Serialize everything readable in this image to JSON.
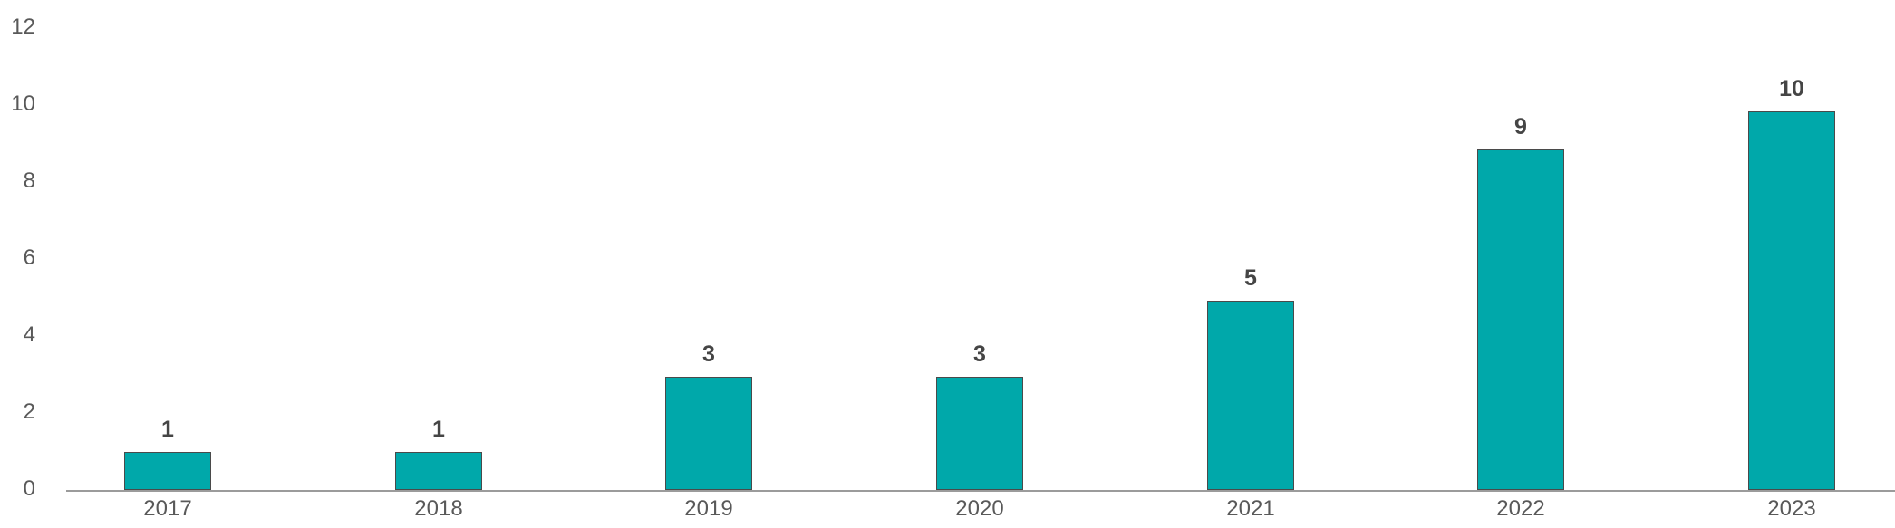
{
  "chart_data": {
    "type": "bar",
    "title": "",
    "xlabel": "",
    "ylabel": "",
    "categories": [
      "2017",
      "2018",
      "2019",
      "2020",
      "2021",
      "2022",
      "2023"
    ],
    "values": [
      1,
      1,
      3,
      3,
      5,
      9,
      10
    ],
    "data_labels": [
      "1",
      "1",
      "3",
      "3",
      "5",
      "9",
      "10"
    ],
    "yticks_desc": [
      "12",
      "10",
      "8",
      "6",
      "4",
      "2",
      "0"
    ],
    "ylim": [
      0,
      12
    ],
    "grid": false,
    "legend": false,
    "colors": {
      "bar_fill": "#00A8AA",
      "bar_border": "#4A4A4A",
      "data_label": "#454545",
      "tick_label": "#595959",
      "axis_line": "#9B9B9B",
      "background": "#FFFFFF"
    }
  }
}
